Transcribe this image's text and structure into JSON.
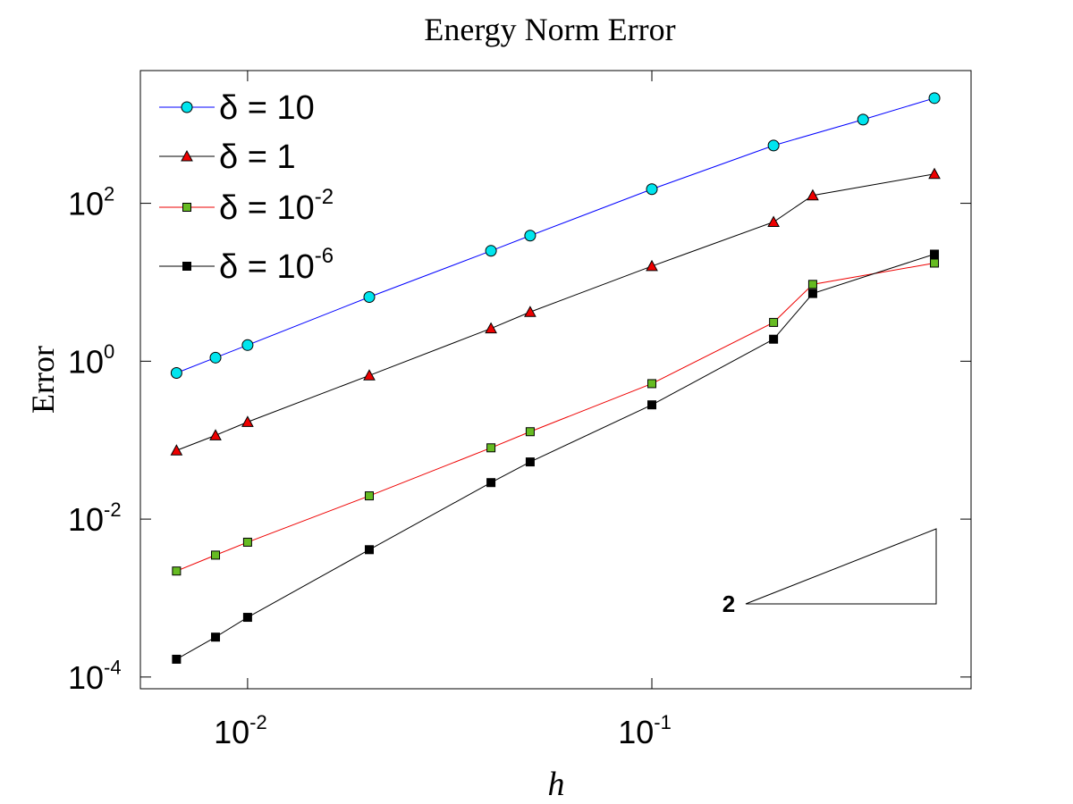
{
  "chart_data": {
    "type": "line",
    "title": "Energy Norm Error",
    "xlabel": "h",
    "ylabel": "Error",
    "xscale": "log",
    "yscale": "log",
    "xlim": [
      0.00543,
      0.616
    ],
    "ylim": [
      7.1e-05,
      4800
    ],
    "xticks": [
      {
        "value": 0.01,
        "label": "10",
        "exponent": "-2"
      },
      {
        "value": 0.1,
        "label": "10",
        "exponent": "-1"
      }
    ],
    "yticks": [
      {
        "value": 0.0001,
        "label": "10",
        "exponent": "-4"
      },
      {
        "value": 0.01,
        "label": "10",
        "exponent": "-2"
      },
      {
        "value": 1,
        "label": "10",
        "exponent": "0"
      },
      {
        "value": 100,
        "label": "10",
        "exponent": "2"
      }
    ],
    "grid": false,
    "legend": "upper left",
    "annotation": "2",
    "series": [
      {
        "name": "δ = 10",
        "color": "#0000ff",
        "marker": "circle",
        "marker_color": "#00e5ee",
        "x": [
          0.00667,
          0.00833,
          0.01,
          0.02,
          0.04,
          0.05,
          0.1,
          0.2,
          0.333,
          0.5
        ],
        "values": [
          0.71,
          1.11,
          1.6,
          6.5,
          25,
          39,
          151,
          540,
          1150,
          2150
        ]
      },
      {
        "name": "δ = 1",
        "color": "#000000",
        "marker": "triangle",
        "marker_color": "#ee0000",
        "x": [
          0.00667,
          0.00833,
          0.01,
          0.02,
          0.04,
          0.05,
          0.1,
          0.2,
          0.25,
          0.5
        ],
        "values": [
          0.074,
          0.115,
          0.17,
          0.66,
          2.6,
          4.2,
          16,
          58,
          126,
          235
        ]
      },
      {
        "name": "δ = 10",
        "name_exponent": "-2",
        "color": "#ee0000",
        "marker": "square",
        "marker_color": "#66bb22",
        "x": [
          0.00667,
          0.00833,
          0.01,
          0.02,
          0.04,
          0.05,
          0.1,
          0.2,
          0.25,
          0.5
        ],
        "values": [
          0.0022,
          0.0035,
          0.0051,
          0.0197,
          0.08,
          0.128,
          0.52,
          3.1,
          9.4,
          17.5
        ]
      },
      {
        "name": "δ = 10",
        "name_exponent": "-6",
        "color": "#000000",
        "marker": "square",
        "marker_color": "#000000",
        "x": [
          0.00667,
          0.00833,
          0.01,
          0.02,
          0.04,
          0.05,
          0.1,
          0.2,
          0.25,
          0.5
        ],
        "values": [
          0.000168,
          0.00032,
          0.00057,
          0.0041,
          0.029,
          0.053,
          0.28,
          1.9,
          7.2,
          22.7
        ]
      }
    ]
  }
}
